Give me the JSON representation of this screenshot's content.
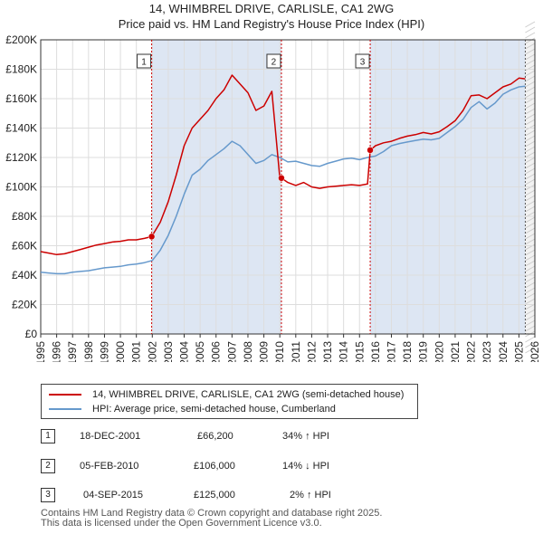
{
  "title": "14, WHIMBREL DRIVE, CARLISLE, CA1 2WG",
  "subtitle": "Price paid vs. HM Land Registry's House Price Index (HPI)",
  "colors": {
    "price": "#cc0000",
    "hpi": "#6699cc",
    "shade": "#dde6f3",
    "grid": "#dddddd"
  },
  "chart_data": {
    "type": "line",
    "title": "14, WHIMBREL DRIVE, CARLISLE, CA1 2WG",
    "xlabel": "",
    "ylabel": "",
    "xlim": [
      1995,
      2026
    ],
    "ylim": [
      0,
      200000
    ],
    "x_ticks": [
      "1995",
      "1996",
      "1997",
      "1998",
      "1999",
      "2000",
      "2001",
      "2002",
      "2003",
      "2004",
      "2005",
      "2006",
      "2007",
      "2008",
      "2009",
      "2010",
      "2011",
      "2012",
      "2013",
      "2014",
      "2015",
      "2016",
      "2017",
      "2018",
      "2019",
      "2020",
      "2021",
      "2022",
      "2023",
      "2024",
      "2025",
      "2026"
    ],
    "y_ticks": [
      "£0",
      "£20K",
      "£40K",
      "£60K",
      "£80K",
      "£100K",
      "£120K",
      "£140K",
      "£160K",
      "£180K",
      "£200K"
    ],
    "y_tick_values": [
      0,
      20000,
      40000,
      60000,
      80000,
      100000,
      120000,
      140000,
      160000,
      180000,
      200000
    ],
    "series": [
      {
        "name": "14, WHIMBREL DRIVE, CARLISLE, CA1 2WG (semi-detached house)",
        "color": "#cc0000",
        "x": [
          1995.0,
          1995.5,
          1996.0,
          1996.5,
          1997.0,
          1997.5,
          1998.0,
          1998.5,
          1999.0,
          1999.5,
          2000.0,
          2000.5,
          2001.0,
          2001.5,
          2001.96,
          2002.5,
          2003.0,
          2003.5,
          2004.0,
          2004.5,
          2005.0,
          2005.5,
          2006.0,
          2006.5,
          2007.0,
          2007.5,
          2008.0,
          2008.5,
          2009.0,
          2009.5,
          2010.0,
          2010.1,
          2010.5,
          2011.0,
          2011.5,
          2012.0,
          2012.5,
          2013.0,
          2013.5,
          2014.0,
          2014.5,
          2015.0,
          2015.5,
          2015.67,
          2016.0,
          2016.5,
          2017.0,
          2017.5,
          2018.0,
          2018.5,
          2019.0,
          2019.5,
          2020.0,
          2020.5,
          2021.0,
          2021.5,
          2022.0,
          2022.5,
          2023.0,
          2023.5,
          2024.0,
          2024.5,
          2025.0,
          2025.4
        ],
        "values": [
          56000,
          55000,
          54000,
          54500,
          56000,
          57500,
          59000,
          60500,
          61500,
          62500,
          63000,
          64000,
          64000,
          65000,
          66200,
          76000,
          90000,
          108000,
          128000,
          140000,
          146000,
          152000,
          160000,
          166000,
          176000,
          170000,
          164000,
          152000,
          155000,
          165000,
          106000,
          106000,
          103000,
          101000,
          103000,
          100000,
          99000,
          100000,
          100500,
          101000,
          101500,
          101000,
          102000,
          125000,
          128000,
          130000,
          131000,
          133000,
          134500,
          135500,
          137000,
          136000,
          137500,
          141000,
          145000,
          152000,
          162000,
          162500,
          160000,
          164000,
          168000,
          170000,
          174000,
          173500
        ]
      },
      {
        "name": "HPI: Average price, semi-detached house, Cumberland",
        "color": "#6699cc",
        "x": [
          1995.0,
          1995.5,
          1996.0,
          1996.5,
          1997.0,
          1997.5,
          1998.0,
          1998.5,
          1999.0,
          1999.5,
          2000.0,
          2000.5,
          2001.0,
          2001.5,
          2002.0,
          2002.5,
          2003.0,
          2003.5,
          2004.0,
          2004.5,
          2005.0,
          2005.5,
          2006.0,
          2006.5,
          2007.0,
          2007.5,
          2008.0,
          2008.5,
          2009.0,
          2009.5,
          2010.0,
          2010.5,
          2011.0,
          2011.5,
          2012.0,
          2012.5,
          2013.0,
          2013.5,
          2014.0,
          2014.5,
          2015.0,
          2015.5,
          2016.0,
          2016.5,
          2017.0,
          2017.5,
          2018.0,
          2018.5,
          2019.0,
          2019.5,
          2020.0,
          2020.5,
          2021.0,
          2021.5,
          2022.0,
          2022.5,
          2023.0,
          2023.5,
          2024.0,
          2024.5,
          2025.0,
          2025.4
        ],
        "values": [
          42000,
          41500,
          41000,
          41000,
          42000,
          42500,
          43000,
          44000,
          45000,
          45500,
          46000,
          47000,
          47500,
          48500,
          50000,
          57000,
          67000,
          80000,
          95000,
          108000,
          112000,
          118000,
          122000,
          126000,
          131000,
          128000,
          122000,
          116000,
          118000,
          122000,
          120000,
          117000,
          117500,
          116000,
          114500,
          114000,
          116000,
          117500,
          119000,
          119500,
          118500,
          120000,
          121000,
          124000,
          128000,
          129500,
          130500,
          131500,
          132500,
          132000,
          133000,
          137000,
          141000,
          146000,
          154000,
          158000,
          153000,
          157000,
          163000,
          166000,
          168000,
          168500
        ]
      }
    ],
    "sales": [
      {
        "id": "1",
        "x": 2001.96,
        "value": 66200
      },
      {
        "id": "2",
        "x": 2010.1,
        "value": 106000
      },
      {
        "id": "3",
        "x": 2015.67,
        "value": 125000
      }
    ]
  },
  "legend": {
    "price_label": "14, WHIMBREL DRIVE, CARLISLE, CA1 2WG (semi-detached house)",
    "hpi_label": "HPI: Average price, semi-detached house, Cumberland"
  },
  "transactions": [
    {
      "id": "1",
      "date": "18-DEC-2001",
      "price": "£66,200",
      "change": "34% ↑ HPI"
    },
    {
      "id": "2",
      "date": "05-FEB-2010",
      "price": "£106,000",
      "change": "14% ↓ HPI"
    },
    {
      "id": "3",
      "date": "04-SEP-2015",
      "price": "£125,000",
      "change": "2% ↑ HPI"
    }
  ],
  "footer": {
    "line1": "Contains HM Land Registry data © Crown copyright and database right 2025.",
    "line2": "This data is licensed under the Open Government Licence v3.0."
  }
}
